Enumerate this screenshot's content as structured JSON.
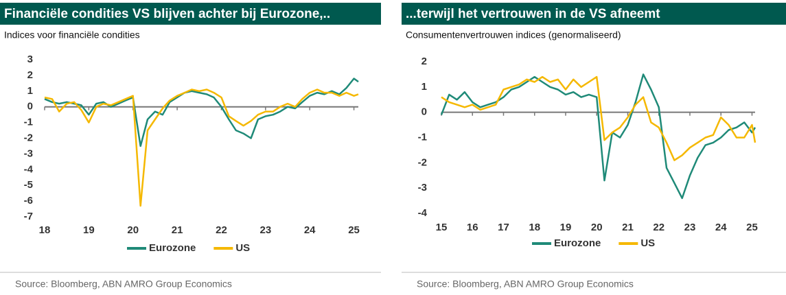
{
  "chart_data": [
    {
      "type": "line",
      "title": "Financiële condities VS blijven achter bij Eurozone,..",
      "subtitle": "Indices voor financiële condities",
      "source": "Source: Bloomberg, ABN AMRO Group Economics",
      "x": [
        2018.0,
        2018.17,
        2018.33,
        2018.5,
        2018.67,
        2018.83,
        2019.0,
        2019.17,
        2019.33,
        2019.5,
        2019.67,
        2019.83,
        2020.0,
        2020.17,
        2020.33,
        2020.5,
        2020.67,
        2020.83,
        2021.0,
        2021.17,
        2021.33,
        2021.5,
        2021.67,
        2021.83,
        2022.0,
        2022.17,
        2022.33,
        2022.5,
        2022.67,
        2022.83,
        2023.0,
        2023.17,
        2023.33,
        2023.5,
        2023.67,
        2023.83,
        2024.0,
        2024.17,
        2024.33,
        2024.5,
        2024.67,
        2024.83,
        2025.0,
        2025.1
      ],
      "series": [
        {
          "name": "Eurozone",
          "color": "#1f8a78",
          "values": [
            0.5,
            0.3,
            0.2,
            0.3,
            0.2,
            0.1,
            -0.5,
            0.2,
            0.3,
            0.0,
            0.2,
            0.4,
            0.6,
            -2.5,
            -0.8,
            -0.3,
            -0.5,
            0.3,
            0.6,
            0.9,
            1.0,
            0.9,
            0.8,
            0.6,
            0.0,
            -0.8,
            -1.5,
            -1.7,
            -2.0,
            -0.8,
            -0.6,
            -0.5,
            -0.3,
            0.0,
            -0.1,
            0.3,
            0.7,
            0.9,
            0.8,
            1.0,
            0.8,
            1.2,
            1.8,
            1.6
          ]
        },
        {
          "name": "US",
          "color": "#f5b800",
          "values": [
            0.6,
            0.5,
            -0.3,
            0.2,
            0.3,
            -0.2,
            -1.0,
            0.0,
            0.2,
            0.1,
            0.3,
            0.5,
            0.7,
            -6.3,
            -1.5,
            -0.8,
            -0.1,
            0.4,
            0.7,
            0.9,
            1.1,
            1.0,
            1.1,
            0.9,
            0.6,
            -0.6,
            -0.9,
            -1.2,
            -0.9,
            -0.5,
            -0.3,
            -0.3,
            0.0,
            0.2,
            0.0,
            0.5,
            0.9,
            1.1,
            0.9,
            0.9,
            0.7,
            0.9,
            0.7,
            0.8
          ]
        }
      ],
      "xlim": [
        2018,
        2025.1
      ],
      "ylim": [
        -7,
        3
      ],
      "xticks": [
        {
          "value": 2018,
          "label": "18"
        },
        {
          "value": 2019,
          "label": "19"
        },
        {
          "value": 2020,
          "label": "20"
        },
        {
          "value": 2021,
          "label": "21"
        },
        {
          "value": 2022,
          "label": "22"
        },
        {
          "value": 2023,
          "label": "23"
        },
        {
          "value": 2024,
          "label": "24"
        },
        {
          "value": 2025,
          "label": "25"
        }
      ],
      "yticks": [
        3,
        2,
        1,
        0,
        -1,
        -2,
        -3,
        -4,
        -5,
        -6,
        -7
      ]
    },
    {
      "type": "line",
      "title": "...terwijl het vertrouwen in de VS afneemt",
      "subtitle": "Consumentenvertrouwen indices (genormaliseerd)",
      "source": "Source: Bloomberg, ABN AMRO Group Economics",
      "x": [
        2015.0,
        2015.25,
        2015.5,
        2015.75,
        2016.0,
        2016.25,
        2016.5,
        2016.75,
        2017.0,
        2017.25,
        2017.5,
        2017.75,
        2018.0,
        2018.25,
        2018.5,
        2018.75,
        2019.0,
        2019.25,
        2019.5,
        2019.75,
        2020.0,
        2020.25,
        2020.5,
        2020.75,
        2021.0,
        2021.25,
        2021.5,
        2021.75,
        2022.0,
        2022.25,
        2022.5,
        2022.75,
        2023.0,
        2023.25,
        2023.5,
        2023.75,
        2024.0,
        2024.25,
        2024.5,
        2024.75,
        2025.0,
        2025.1
      ],
      "series": [
        {
          "name": "Eurozone",
          "color": "#1f8a78",
          "values": [
            -0.1,
            0.7,
            0.5,
            0.8,
            0.4,
            0.2,
            0.3,
            0.4,
            0.6,
            0.9,
            1.0,
            1.2,
            1.4,
            1.2,
            1.0,
            0.9,
            0.7,
            0.8,
            0.6,
            0.7,
            0.6,
            -2.7,
            -0.8,
            -1.0,
            -0.5,
            0.4,
            1.5,
            0.9,
            0.2,
            -2.2,
            -2.8,
            -3.4,
            -2.5,
            -1.8,
            -1.3,
            -1.2,
            -1.0,
            -0.7,
            -0.6,
            -0.4,
            -0.8,
            -0.6
          ]
        },
        {
          "name": "US",
          "color": "#f5b800",
          "values": [
            0.6,
            0.4,
            0.3,
            0.2,
            0.3,
            0.1,
            0.2,
            0.3,
            0.9,
            1.0,
            1.1,
            1.3,
            1.2,
            1.4,
            1.2,
            1.3,
            0.9,
            1.3,
            1.0,
            1.2,
            1.4,
            -1.1,
            -0.8,
            -0.6,
            -0.2,
            0.3,
            0.6,
            -0.4,
            -0.6,
            -1.2,
            -1.9,
            -1.7,
            -1.4,
            -1.2,
            -1.0,
            -0.9,
            -0.2,
            -0.5,
            -1.0,
            -1.0,
            -0.5,
            -1.2
          ]
        }
      ],
      "xlim": [
        2015,
        2025.1
      ],
      "ylim": [
        -4,
        2
      ],
      "xticks": [
        {
          "value": 2015,
          "label": "15"
        },
        {
          "value": 2016,
          "label": "16"
        },
        {
          "value": 2017,
          "label": "17"
        },
        {
          "value": 2018,
          "label": "18"
        },
        {
          "value": 2019,
          "label": "19"
        },
        {
          "value": 2020,
          "label": "20"
        },
        {
          "value": 2021,
          "label": "21"
        },
        {
          "value": 2022,
          "label": "22"
        },
        {
          "value": 2023,
          "label": "23"
        },
        {
          "value": 2024,
          "label": "24"
        },
        {
          "value": 2025,
          "label": "25"
        }
      ],
      "yticks": [
        2,
        1,
        0,
        -1,
        -2,
        -3,
        -4
      ]
    }
  ]
}
